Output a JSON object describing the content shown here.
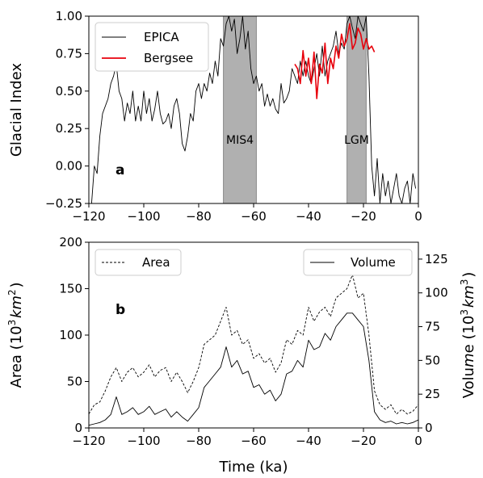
{
  "chart_data": [
    {
      "type": "line",
      "panel_label": "a",
      "ylabel": "Glacial Index",
      "xlim": [
        -120,
        0
      ],
      "ylim": [
        -0.25,
        1.0
      ],
      "xticks": [
        -120,
        -100,
        -80,
        -60,
        -40,
        -20,
        0
      ],
      "yticks": [
        -0.25,
        0.0,
        0.25,
        0.5,
        0.75,
        1.0
      ],
      "xtick_labels": [
        "−120",
        "−100",
        "−80",
        "−60",
        "−40",
        "−20",
        "0"
      ],
      "ytick_labels": [
        "−0.25",
        "0.00",
        "0.25",
        "0.50",
        "0.75",
        "1.00"
      ],
      "legend_position": "top-left",
      "shaded_regions": [
        {
          "label": "MIS4",
          "x_range": [
            -71,
            -59
          ],
          "color": "#b0b0b0"
        },
        {
          "label": "LGM",
          "x_range": [
            -26,
            -19
          ],
          "color": "#b0b0b0"
        }
      ],
      "series": [
        {
          "name": "EPICA",
          "color": "#000000",
          "line_style": "solid",
          "x": [
            -119,
            -118,
            -117,
            -116,
            -115,
            -114,
            -113,
            -112,
            -111,
            -110,
            -109,
            -108,
            -107,
            -106,
            -105,
            -104,
            -103,
            -102,
            -101,
            -100,
            -99,
            -98,
            -97,
            -96,
            -95,
            -94,
            -93,
            -92,
            -91,
            -90,
            -89,
            -88,
            -87,
            -86,
            -85,
            -84,
            -83,
            -82,
            -81,
            -80,
            -79,
            -78,
            -77,
            -76,
            -75,
            -74,
            -73,
            -72,
            -71,
            -70,
            -69,
            -68,
            -67,
            -66,
            -65,
            -64,
            -63,
            -62,
            -61,
            -60,
            -59,
            -58,
            -57,
            -56,
            -55,
            -54,
            -53,
            -52,
            -51,
            -50,
            -49,
            -48,
            -47,
            -46,
            -45,
            -44,
            -43,
            -42,
            -41,
            -40,
            -39,
            -38,
            -37,
            -36,
            -35,
            -34,
            -33,
            -32,
            -31,
            -30,
            -29,
            -28,
            -27,
            -26,
            -25,
            -24,
            -23,
            -22,
            -21,
            -20,
            -19,
            -18,
            -17,
            -16,
            -15,
            -14,
            -13,
            -12,
            -11,
            -10,
            -9,
            -8,
            -7,
            -6,
            -5,
            -4,
            -3,
            -2,
            -1
          ],
          "values": [
            -0.25,
            0.0,
            -0.05,
            0.2,
            0.35,
            0.4,
            0.45,
            0.55,
            0.6,
            0.68,
            0.5,
            0.45,
            0.3,
            0.42,
            0.35,
            0.5,
            0.3,
            0.4,
            0.3,
            0.5,
            0.35,
            0.45,
            0.3,
            0.38,
            0.5,
            0.35,
            0.28,
            0.3,
            0.35,
            0.25,
            0.4,
            0.45,
            0.35,
            0.15,
            0.1,
            0.2,
            0.35,
            0.3,
            0.5,
            0.55,
            0.45,
            0.55,
            0.5,
            0.62,
            0.55,
            0.7,
            0.6,
            0.85,
            0.8,
            0.95,
            1.0,
            0.9,
            0.98,
            0.75,
            0.85,
            1.0,
            0.78,
            0.9,
            0.65,
            0.55,
            0.6,
            0.5,
            0.55,
            0.4,
            0.48,
            0.4,
            0.45,
            0.38,
            0.35,
            0.55,
            0.42,
            0.45,
            0.5,
            0.65,
            0.6,
            0.55,
            0.7,
            0.6,
            0.7,
            0.6,
            0.55,
            0.65,
            0.75,
            0.6,
            0.8,
            0.6,
            0.7,
            0.75,
            0.8,
            0.9,
            0.75,
            0.82,
            0.78,
            0.95,
            1.0,
            0.92,
            0.85,
            1.0,
            0.95,
            0.9,
            1.0,
            0.6,
            0.0,
            -0.2,
            0.05,
            -0.25,
            -0.05,
            -0.2,
            -0.1,
            -0.25,
            -0.15,
            -0.05,
            -0.2,
            -0.25,
            -0.15,
            -0.1,
            -0.25,
            -0.05,
            -0.15
          ]
        },
        {
          "name": "Bergsee",
          "color": "#e8000b",
          "line_style": "solid",
          "x": [
            -45,
            -44,
            -43,
            -42,
            -41,
            -40,
            -39,
            -38,
            -37,
            -36,
            -35,
            -34,
            -33,
            -32,
            -31,
            -30,
            -29,
            -28,
            -27,
            -26,
            -25,
            -24,
            -23,
            -22,
            -21,
            -20,
            -19,
            -18,
            -17,
            -16
          ],
          "values": [
            0.68,
            0.65,
            0.55,
            0.77,
            0.6,
            0.72,
            0.55,
            0.76,
            0.45,
            0.68,
            0.62,
            0.82,
            0.55,
            0.72,
            0.65,
            0.8,
            0.72,
            0.88,
            0.8,
            0.85,
            0.95,
            0.78,
            0.82,
            0.92,
            0.88,
            0.78,
            0.85,
            0.78,
            0.8,
            0.76
          ]
        }
      ]
    },
    {
      "type": "line",
      "panel_label": "b",
      "xlabel": "Time (ka)",
      "ylabel_left": "Area (10³km²)",
      "ylabel_right": "Volume (10³km³)",
      "xlim": [
        -120,
        0
      ],
      "ylim_left": [
        0,
        200
      ],
      "ylim_right": [
        0,
        137.5
      ],
      "xticks": [
        -120,
        -100,
        -80,
        -60,
        -40,
        -20,
        0
      ],
      "xtick_labels": [
        "−120",
        "−100",
        "−80",
        "−60",
        "−40",
        "−20",
        "0"
      ],
      "yticks_left": [
        0,
        50,
        100,
        150,
        200
      ],
      "ytick_labels_left": [
        "0",
        "50",
        "100",
        "150",
        "200"
      ],
      "yticks_right": [
        0,
        25,
        50,
        75,
        100,
        125
      ],
      "ytick_labels_right": [
        "0",
        "25",
        "50",
        "75",
        "100",
        "125"
      ],
      "legend_positions": {
        "Area": "top-left",
        "Volume": "top-right"
      },
      "series": [
        {
          "name": "Area",
          "axis": "left",
          "color": "#000000",
          "line_style": "dashed",
          "x": [
            -120,
            -118,
            -116,
            -114,
            -112,
            -110,
            -108,
            -106,
            -104,
            -102,
            -100,
            -98,
            -96,
            -94,
            -92,
            -90,
            -88,
            -86,
            -84,
            -82,
            -80,
            -78,
            -76,
            -74,
            -72,
            -70,
            -68,
            -66,
            -64,
            -62,
            -60,
            -58,
            -56,
            -54,
            -52,
            -50,
            -48,
            -46,
            -44,
            -42,
            -40,
            -38,
            -36,
            -34,
            -32,
            -30,
            -28,
            -26,
            -24,
            -22,
            -20,
            -18,
            -16,
            -14,
            -12,
            -10,
            -8,
            -6,
            -4,
            -2,
            0
          ],
          "values": [
            15,
            25,
            28,
            40,
            55,
            65,
            50,
            60,
            65,
            55,
            60,
            68,
            55,
            62,
            65,
            50,
            60,
            50,
            38,
            50,
            65,
            90,
            95,
            100,
            115,
            130,
            100,
            105,
            90,
            95,
            75,
            80,
            70,
            75,
            60,
            70,
            95,
            90,
            105,
            100,
            130,
            115,
            125,
            130,
            120,
            140,
            145,
            150,
            165,
            140,
            145,
            100,
            40,
            25,
            20,
            25,
            15,
            20,
            15,
            18,
            25
          ]
        },
        {
          "name": "Volume",
          "axis": "right",
          "color": "#000000",
          "line_style": "solid",
          "x": [
            -120,
            -118,
            -116,
            -114,
            -112,
            -110,
            -108,
            -106,
            -104,
            -102,
            -100,
            -98,
            -96,
            -94,
            -92,
            -90,
            -88,
            -86,
            -84,
            -82,
            -80,
            -78,
            -76,
            -74,
            -72,
            -70,
            -68,
            -66,
            -64,
            -62,
            -60,
            -58,
            -56,
            -54,
            -52,
            -50,
            -48,
            -46,
            -44,
            -42,
            -40,
            -38,
            -36,
            -34,
            -32,
            -30,
            -28,
            -26,
            -24,
            -22,
            -20,
            -18,
            -16,
            -14,
            -12,
            -10,
            -8,
            -6,
            -4,
            -2,
            0
          ],
          "values": [
            2,
            3,
            4,
            6,
            10,
            23,
            10,
            12,
            15,
            10,
            12,
            16,
            10,
            12,
            14,
            8,
            12,
            8,
            5,
            10,
            15,
            30,
            35,
            40,
            45,
            60,
            45,
            50,
            40,
            42,
            30,
            32,
            25,
            28,
            20,
            25,
            40,
            42,
            50,
            45,
            65,
            58,
            60,
            70,
            65,
            75,
            80,
            85,
            85,
            80,
            75,
            50,
            12,
            6,
            4,
            5,
            3,
            4,
            3,
            4,
            6
          ]
        }
      ]
    }
  ]
}
